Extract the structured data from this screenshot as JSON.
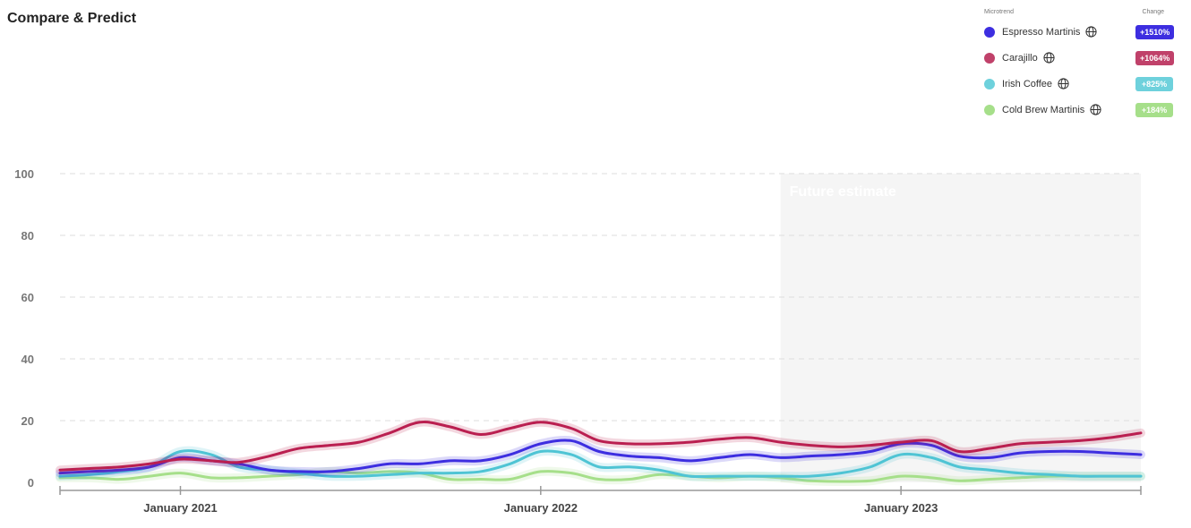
{
  "page": {
    "title": "Compare & Predict"
  },
  "legend": {
    "header_trend": "Microtrend",
    "header_change": "Change",
    "items": [
      {
        "name": "Espresso Martinis",
        "change": "+1510%",
        "color": "#3d2ee0",
        "icon": "globe-icon"
      },
      {
        "name": "Carajillo",
        "change": "+1064%",
        "color": "#c0416a",
        "icon": "globe-icon"
      },
      {
        "name": "Irish Coffee",
        "change": "+825%",
        "color": "#6ed1dc",
        "icon": "globe-icon"
      },
      {
        "name": "Cold Brew Martinis",
        "change": "+184%",
        "color": "#a6df8a",
        "icon": "globe-icon"
      }
    ]
  },
  "chart_data": {
    "type": "line",
    "title": "",
    "xlabel": "",
    "ylabel": "",
    "ylim": [
      0,
      100
    ],
    "yticks": [
      0,
      20,
      40,
      60,
      80,
      100
    ],
    "xlim": [
      "2020-09-01",
      "2023-09-01"
    ],
    "xticks": [
      {
        "date": "2021-01-01",
        "label": "January 2021"
      },
      {
        "date": "2022-01-01",
        "label": "January 2022"
      },
      {
        "date": "2023-01-01",
        "label": "January 2023"
      }
    ],
    "grid": true,
    "future_estimate": {
      "start": "2022-09-01",
      "label": "Future estimate"
    },
    "series": [
      {
        "name": "Espresso Martinis",
        "color": "#3d2ee0",
        "points": [
          [
            "2020-09-01",
            3
          ],
          [
            "2020-10-01",
            3.5
          ],
          [
            "2020-11-01",
            4
          ],
          [
            "2020-12-01",
            5
          ],
          [
            "2021-01-01",
            8
          ],
          [
            "2021-02-01",
            7
          ],
          [
            "2021-03-01",
            6
          ],
          [
            "2021-04-01",
            4
          ],
          [
            "2021-05-01",
            3.5
          ],
          [
            "2021-06-01",
            3.5
          ],
          [
            "2021-07-01",
            4.5
          ],
          [
            "2021-08-01",
            6
          ],
          [
            "2021-09-01",
            6
          ],
          [
            "2021-10-01",
            7
          ],
          [
            "2021-11-01",
            7
          ],
          [
            "2021-12-01",
            9
          ],
          [
            "2022-01-01",
            12.5
          ],
          [
            "2022-02-01",
            13.5
          ],
          [
            "2022-03-01",
            10
          ],
          [
            "2022-04-01",
            8.5
          ],
          [
            "2022-05-01",
            8
          ],
          [
            "2022-06-01",
            7
          ],
          [
            "2022-07-01",
            8
          ],
          [
            "2022-08-01",
            9
          ],
          [
            "2022-09-01",
            8
          ],
          [
            "2022-10-01",
            8.5
          ],
          [
            "2022-11-01",
            9
          ],
          [
            "2022-12-01",
            10
          ],
          [
            "2023-01-01",
            12.5
          ],
          [
            "2023-02-01",
            12
          ],
          [
            "2023-03-01",
            8.5
          ],
          [
            "2023-04-01",
            8
          ],
          [
            "2023-05-01",
            9.5
          ],
          [
            "2023-06-01",
            10
          ],
          [
            "2023-07-01",
            10
          ],
          [
            "2023-08-01",
            9.5
          ],
          [
            "2023-09-01",
            9
          ]
        ]
      },
      {
        "name": "Carajillo",
        "color": "#ba1f50",
        "points": [
          [
            "2020-09-01",
            4
          ],
          [
            "2020-10-01",
            4.5
          ],
          [
            "2020-11-01",
            5
          ],
          [
            "2020-12-01",
            6
          ],
          [
            "2021-01-01",
            7.5
          ],
          [
            "2021-02-01",
            7
          ],
          [
            "2021-03-01",
            6.5
          ],
          [
            "2021-04-01",
            8.5
          ],
          [
            "2021-05-01",
            11
          ],
          [
            "2021-06-01",
            12
          ],
          [
            "2021-07-01",
            13
          ],
          [
            "2021-08-01",
            16
          ],
          [
            "2021-09-01",
            19.5
          ],
          [
            "2021-10-01",
            18
          ],
          [
            "2021-11-01",
            15.5
          ],
          [
            "2021-12-01",
            17.5
          ],
          [
            "2022-01-01",
            19.5
          ],
          [
            "2022-02-01",
            17.5
          ],
          [
            "2022-03-01",
            13.5
          ],
          [
            "2022-04-01",
            12.5
          ],
          [
            "2022-05-01",
            12.5
          ],
          [
            "2022-06-01",
            13
          ],
          [
            "2022-07-01",
            14
          ],
          [
            "2022-08-01",
            14.5
          ],
          [
            "2022-09-01",
            13
          ],
          [
            "2022-10-01",
            12
          ],
          [
            "2022-11-01",
            11.5
          ],
          [
            "2022-12-01",
            12
          ],
          [
            "2023-01-01",
            13
          ],
          [
            "2023-02-01",
            13.5
          ],
          [
            "2023-03-01",
            10
          ],
          [
            "2023-04-01",
            11
          ],
          [
            "2023-05-01",
            12.5
          ],
          [
            "2023-06-01",
            13
          ],
          [
            "2023-07-01",
            13.5
          ],
          [
            "2023-08-01",
            14.5
          ],
          [
            "2023-09-01",
            16
          ]
        ]
      },
      {
        "name": "Irish Coffee",
        "color": "#4fc4d4",
        "points": [
          [
            "2020-09-01",
            2
          ],
          [
            "2020-10-01",
            2.5
          ],
          [
            "2020-11-01",
            3.5
          ],
          [
            "2020-12-01",
            5
          ],
          [
            "2021-01-01",
            10
          ],
          [
            "2021-02-01",
            9
          ],
          [
            "2021-03-01",
            5
          ],
          [
            "2021-04-01",
            4
          ],
          [
            "2021-05-01",
            3
          ],
          [
            "2021-06-01",
            2
          ],
          [
            "2021-07-01",
            2
          ],
          [
            "2021-08-01",
            2.5
          ],
          [
            "2021-09-01",
            3
          ],
          [
            "2021-10-01",
            3
          ],
          [
            "2021-11-01",
            3.5
          ],
          [
            "2021-12-01",
            6
          ],
          [
            "2022-01-01",
            10
          ],
          [
            "2022-02-01",
            9
          ],
          [
            "2022-03-01",
            5
          ],
          [
            "2022-04-01",
            5
          ],
          [
            "2022-05-01",
            4
          ],
          [
            "2022-06-01",
            2
          ],
          [
            "2022-07-01",
            2
          ],
          [
            "2022-08-01",
            2
          ],
          [
            "2022-09-01",
            2
          ],
          [
            "2022-10-01",
            2
          ],
          [
            "2022-11-01",
            3
          ],
          [
            "2022-12-01",
            5
          ],
          [
            "2023-01-01",
            9
          ],
          [
            "2023-02-01",
            8
          ],
          [
            "2023-03-01",
            5
          ],
          [
            "2023-04-01",
            4
          ],
          [
            "2023-05-01",
            3
          ],
          [
            "2023-06-01",
            2.5
          ],
          [
            "2023-07-01",
            2
          ],
          [
            "2023-08-01",
            2
          ],
          [
            "2023-09-01",
            2
          ]
        ]
      },
      {
        "name": "Cold Brew Martinis",
        "color": "#a6df8a",
        "points": [
          [
            "2020-09-01",
            1.5
          ],
          [
            "2020-10-01",
            1.5
          ],
          [
            "2020-11-01",
            1
          ],
          [
            "2020-12-01",
            2
          ],
          [
            "2021-01-01",
            3
          ],
          [
            "2021-02-01",
            1.5
          ],
          [
            "2021-03-01",
            1.5
          ],
          [
            "2021-04-01",
            2
          ],
          [
            "2021-05-01",
            2.5
          ],
          [
            "2021-06-01",
            3.5
          ],
          [
            "2021-07-01",
            3
          ],
          [
            "2021-08-01",
            3.5
          ],
          [
            "2021-09-01",
            3
          ],
          [
            "2021-10-01",
            1
          ],
          [
            "2021-11-01",
            1
          ],
          [
            "2021-12-01",
            1
          ],
          [
            "2022-01-01",
            3.5
          ],
          [
            "2022-02-01",
            3
          ],
          [
            "2022-03-01",
            1
          ],
          [
            "2022-04-01",
            1
          ],
          [
            "2022-05-01",
            2.5
          ],
          [
            "2022-06-01",
            2
          ],
          [
            "2022-07-01",
            1.5
          ],
          [
            "2022-08-01",
            2
          ],
          [
            "2022-09-01",
            1.5
          ],
          [
            "2022-10-01",
            0.5
          ],
          [
            "2022-11-01",
            0.3
          ],
          [
            "2022-12-01",
            0.5
          ],
          [
            "2023-01-01",
            2
          ],
          [
            "2023-02-01",
            1.5
          ],
          [
            "2023-03-01",
            0.5
          ],
          [
            "2023-04-01",
            1
          ],
          [
            "2023-05-01",
            1.5
          ],
          [
            "2023-06-01",
            2
          ],
          [
            "2023-07-01",
            2
          ],
          [
            "2023-08-01",
            2
          ],
          [
            "2023-09-01",
            2
          ]
        ]
      }
    ]
  }
}
